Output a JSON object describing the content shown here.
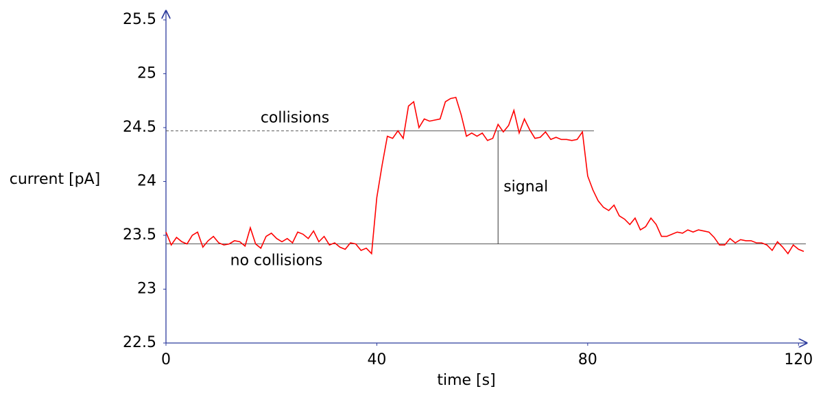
{
  "chart_data": {
    "type": "line",
    "xlabel": "time [s]",
    "ylabel": "current [pA]",
    "x": [
      0,
      1,
      2,
      3,
      4,
      5,
      6,
      7,
      8,
      9,
      10,
      11,
      12,
      13,
      14,
      15,
      16,
      17,
      18,
      19,
      20,
      21,
      22,
      23,
      24,
      25,
      26,
      27,
      28,
      29,
      30,
      31,
      32,
      33,
      34,
      35,
      36,
      37,
      38,
      39,
      40,
      41,
      42,
      43,
      44,
      45,
      46,
      47,
      48,
      49,
      50,
      51,
      52,
      53,
      54,
      55,
      56,
      57,
      58,
      59,
      60,
      61,
      62,
      63,
      64,
      65,
      66,
      67,
      68,
      69,
      70,
      71,
      72,
      73,
      74,
      75,
      76,
      77,
      78,
      79,
      80,
      81,
      82,
      83,
      84,
      85,
      86,
      87,
      88,
      89,
      90,
      91,
      92,
      93,
      94,
      95,
      96,
      97,
      98,
      99,
      100,
      101,
      102,
      103,
      104,
      105,
      106,
      107,
      108,
      109,
      110,
      111,
      112,
      113,
      114,
      115,
      116,
      117,
      118,
      119,
      120,
      121
    ],
    "values": [
      23.53,
      23.41,
      23.48,
      23.44,
      23.42,
      23.5,
      23.53,
      23.39,
      23.45,
      23.49,
      23.43,
      23.41,
      23.42,
      23.45,
      23.44,
      23.4,
      23.57,
      23.42,
      23.38,
      23.49,
      23.52,
      23.47,
      23.44,
      23.47,
      23.43,
      23.53,
      23.51,
      23.47,
      23.54,
      23.44,
      23.49,
      23.41,
      23.43,
      23.39,
      23.37,
      23.43,
      23.42,
      23.36,
      23.38,
      23.33,
      23.85,
      24.15,
      24.42,
      24.4,
      24.47,
      24.4,
      24.7,
      24.74,
      24.5,
      24.58,
      24.56,
      24.57,
      24.58,
      24.74,
      24.77,
      24.78,
      24.62,
      24.42,
      24.45,
      24.42,
      24.45,
      24.38,
      24.4,
      24.53,
      24.46,
      24.52,
      24.66,
      24.45,
      24.58,
      24.48,
      24.4,
      24.41,
      24.46,
      24.39,
      24.41,
      24.39,
      24.39,
      24.38,
      24.39,
      24.46,
      24.05,
      23.92,
      23.82,
      23.76,
      23.73,
      23.78,
      23.68,
      23.65,
      23.6,
      23.66,
      23.55,
      23.58,
      23.66,
      23.6,
      23.49,
      23.49,
      23.51,
      23.53,
      23.52,
      23.55,
      23.53,
      23.55,
      23.54,
      23.53,
      23.48,
      23.41,
      23.41,
      23.47,
      23.43,
      23.46,
      23.45,
      23.45,
      23.43,
      23.43,
      23.41,
      23.36,
      23.44,
      23.39,
      23.33,
      23.41,
      23.37,
      23.35
    ],
    "color": "#ff0000",
    "xlim": [
      0,
      121
    ],
    "ylim": [
      22.5,
      25.5
    ],
    "xticks": [
      0,
      40,
      80,
      120
    ],
    "yticks": [
      22.5,
      23,
      23.5,
      24,
      24.5,
      25,
      25.5
    ],
    "annotations": [
      {
        "text": "collisions",
        "y": 24.47
      },
      {
        "text": "no collisions",
        "y": 23.42
      },
      {
        "text": "signal",
        "x": 63
      }
    ]
  }
}
